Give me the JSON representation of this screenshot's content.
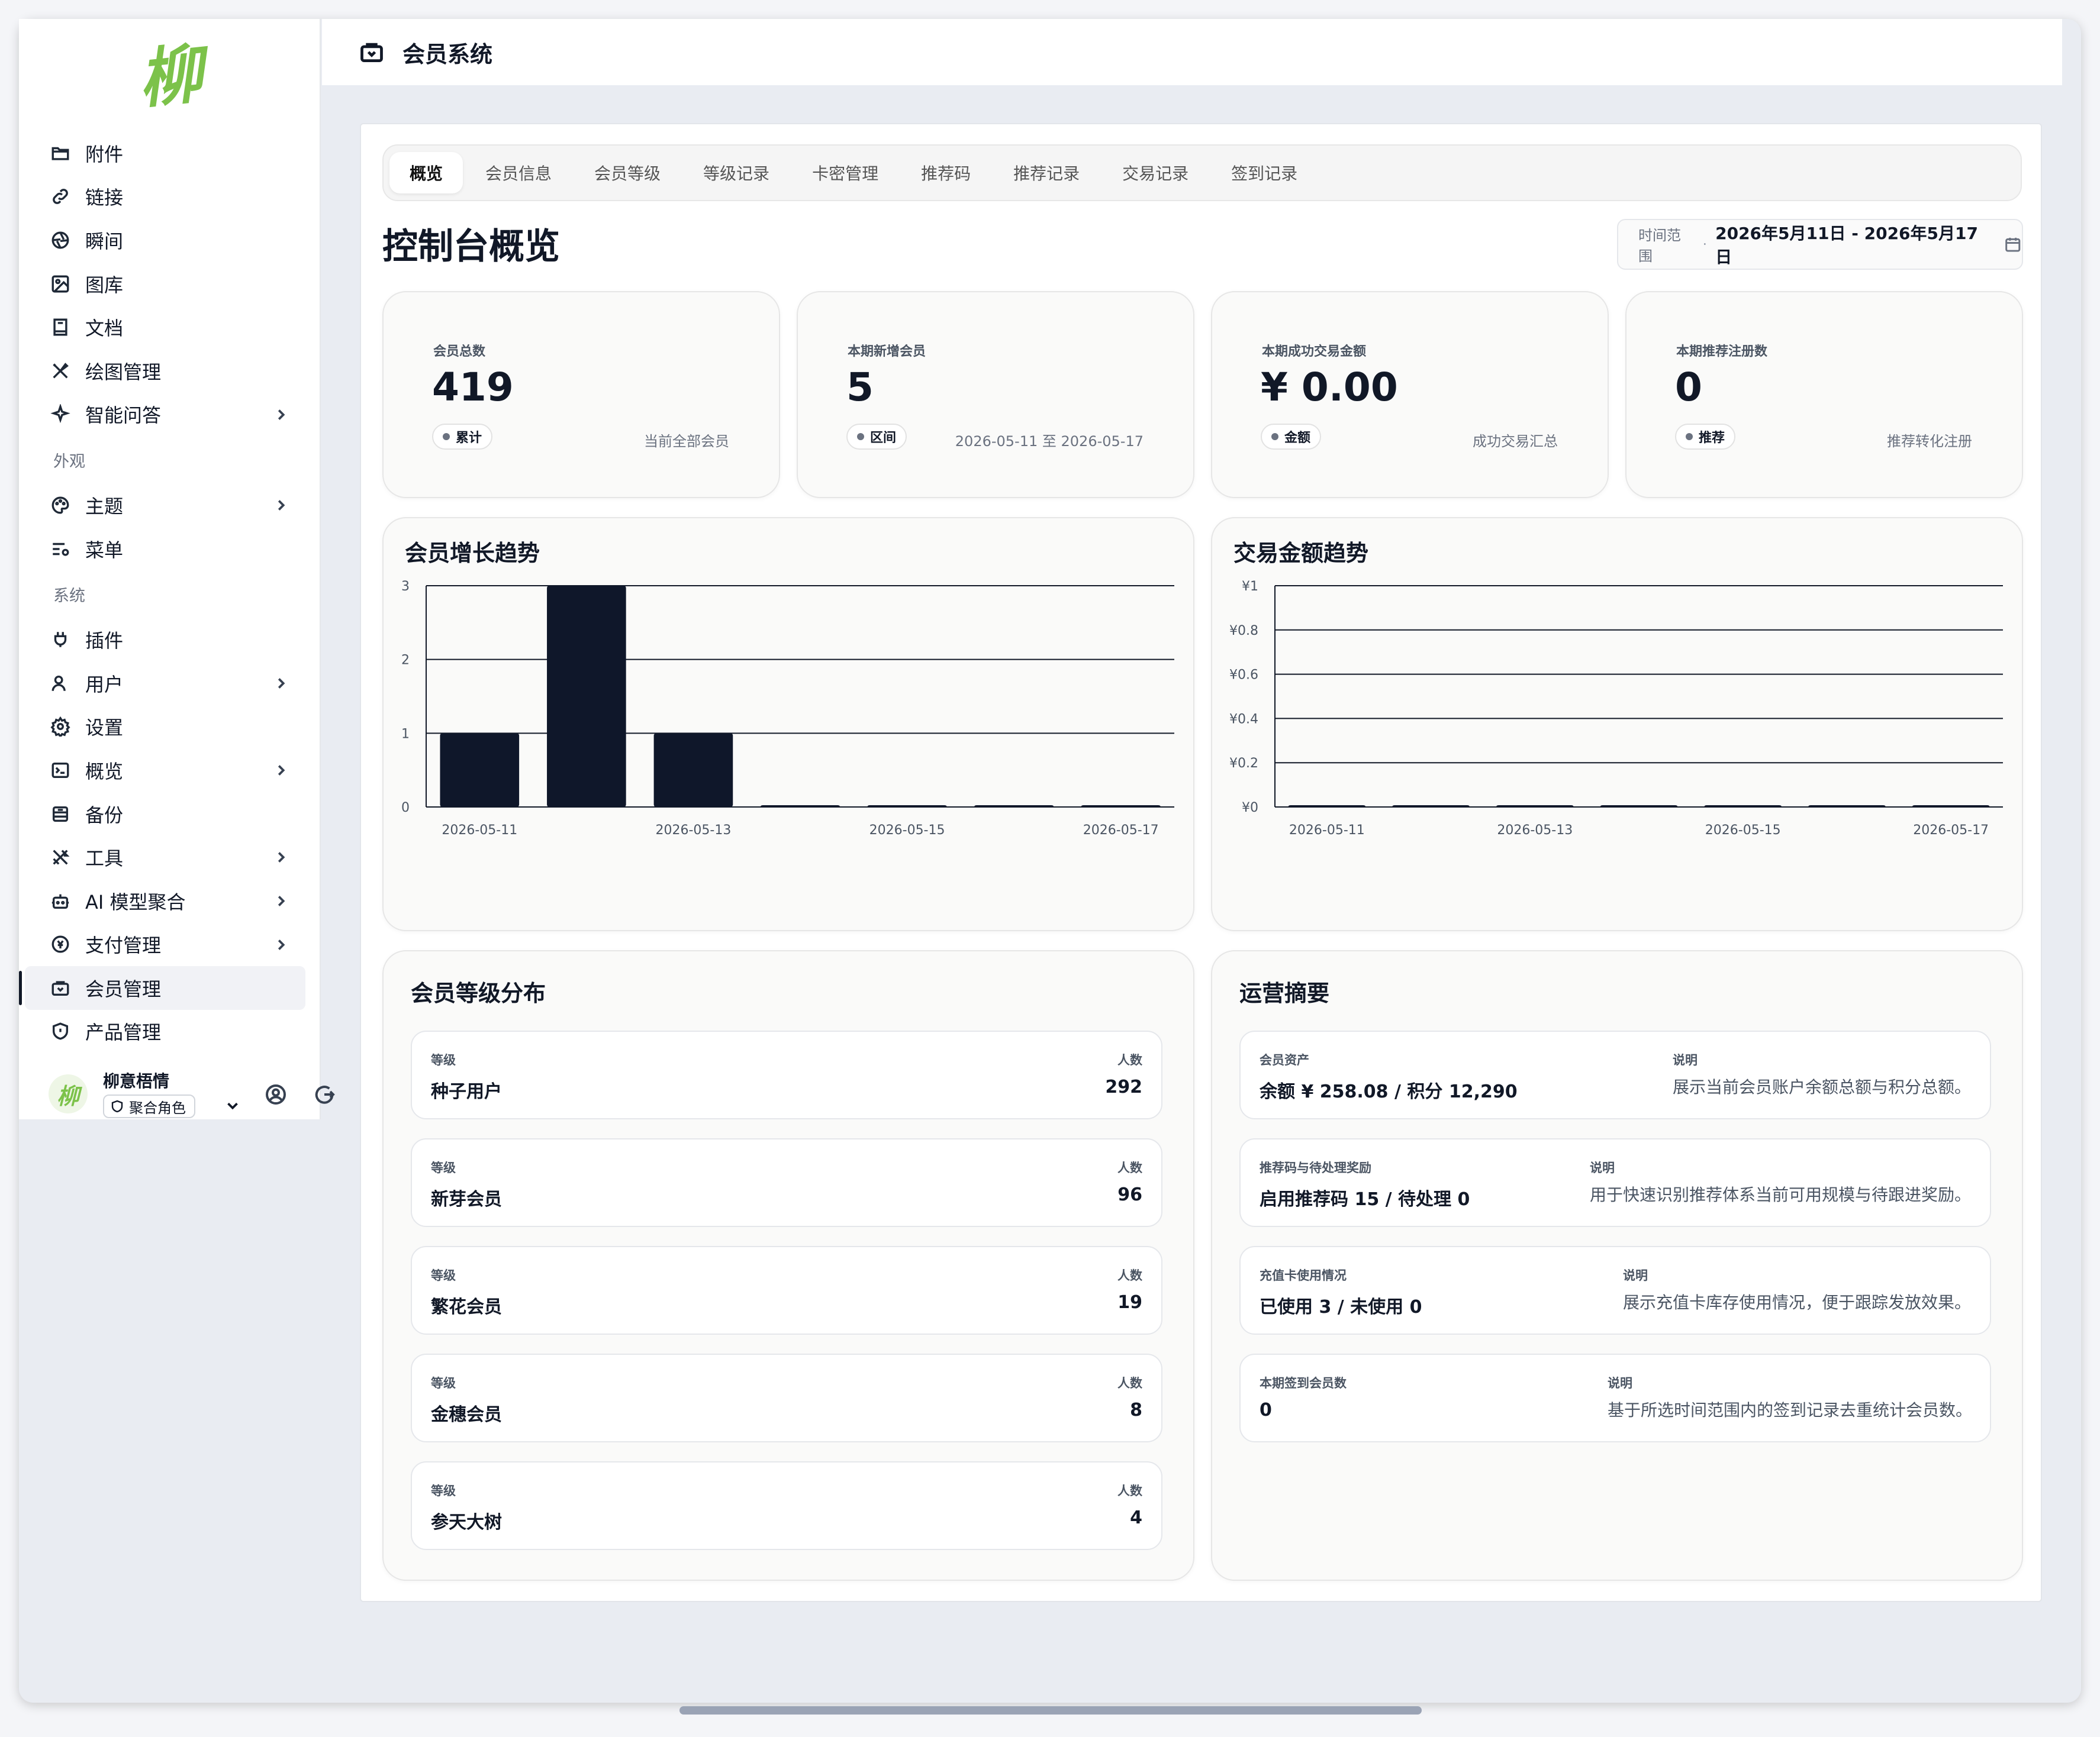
{
  "app": {
    "header_title": "会员系统",
    "logo_text": "柳"
  },
  "sidebar": {
    "items": [
      {
        "label": "附件",
        "icon": "folder-icon"
      },
      {
        "label": "链接",
        "icon": "link-icon"
      },
      {
        "label": "瞬间",
        "icon": "aperture-icon"
      },
      {
        "label": "图库",
        "icon": "image-icon"
      },
      {
        "label": "文档",
        "icon": "book-icon"
      },
      {
        "label": "绘图管理",
        "icon": "pen-tool-icon"
      },
      {
        "label": "智能问答",
        "icon": "sparkle-icon",
        "expandable": true
      }
    ],
    "section_appearance": "外观",
    "appearance_items": [
      {
        "label": "主题",
        "icon": "palette-icon",
        "expandable": true
      },
      {
        "label": "菜单",
        "icon": "menu-settings-icon"
      }
    ],
    "section_system": "系统",
    "system_items": [
      {
        "label": "插件",
        "icon": "plug-icon"
      },
      {
        "label": "用户",
        "icon": "user-icon",
        "expandable": true
      },
      {
        "label": "设置",
        "icon": "settings-icon"
      },
      {
        "label": "概览",
        "icon": "terminal-icon",
        "expandable": true
      },
      {
        "label": "备份",
        "icon": "archive-icon"
      },
      {
        "label": "工具",
        "icon": "tools-icon",
        "expandable": true
      },
      {
        "label": "AI 模型聚合",
        "icon": "bot-icon",
        "expandable": true
      },
      {
        "label": "支付管理",
        "icon": "currency-icon",
        "expandable": true
      },
      {
        "label": "会员管理",
        "icon": "member-icon",
        "active": true
      },
      {
        "label": "产品管理",
        "icon": "shield-icon"
      }
    ],
    "user": {
      "name": "柳意梧情",
      "role": "聚合角色",
      "avatar_text": "柳"
    }
  },
  "tabs": [
    "概览",
    "会员信息",
    "会员等级",
    "等级记录",
    "卡密管理",
    "推荐码",
    "推荐记录",
    "交易记录",
    "签到记录"
  ],
  "active_tab": "概览",
  "page_title": "控制台概览",
  "date_range": {
    "label": "时间范围",
    "separator": "·",
    "value": "2026年5月11日 - 2026年5月17日"
  },
  "stats": [
    {
      "label": "会员总数",
      "value": "419",
      "chip": "累计",
      "note": "当前全部会员"
    },
    {
      "label": "本期新增会员",
      "value": "5",
      "chip": "区间",
      "note": "2026-05-11 至 2026-05-17"
    },
    {
      "label": "本期成功交易金额",
      "value": "¥ 0.00",
      "chip": "金额",
      "note": "成功交易汇总"
    },
    {
      "label": "本期推荐注册数",
      "value": "0",
      "chip": "推荐",
      "note": "推荐转化注册"
    }
  ],
  "chart_data": [
    {
      "type": "bar",
      "title": "会员增长趋势",
      "categories": [
        "2026-05-11",
        "2026-05-12",
        "2026-05-13",
        "2026-05-14",
        "2026-05-15",
        "2026-05-16",
        "2026-05-17"
      ],
      "tick_labels": [
        "2026-05-11",
        "2026-05-13",
        "2026-05-15",
        "2026-05-17"
      ],
      "values": [
        1,
        3,
        1,
        0,
        0,
        0,
        0
      ],
      "y_ticks": [
        "0",
        "1",
        "2",
        "3"
      ],
      "ylim": [
        0,
        3
      ],
      "color": "#0f172a",
      "grid": true
    },
    {
      "type": "bar",
      "title": "交易金额趋势",
      "categories": [
        "2026-05-11",
        "2026-05-12",
        "2026-05-13",
        "2026-05-14",
        "2026-05-15",
        "2026-05-16",
        "2026-05-17"
      ],
      "tick_labels": [
        "2026-05-11",
        "2026-05-13",
        "2026-05-15",
        "2026-05-17"
      ],
      "values": [
        0,
        0,
        0,
        0,
        0,
        0,
        0
      ],
      "y_ticks": [
        "¥0",
        "¥0.2",
        "¥0.4",
        "¥0.6",
        "¥0.8",
        "¥1"
      ],
      "ylim": [
        0,
        1
      ],
      "color": "#0f172a",
      "grid": true
    }
  ],
  "levels": {
    "title": "会员等级分布",
    "key_label": "等级",
    "count_label": "人数",
    "rows": [
      {
        "name": "种子用户",
        "count": "292"
      },
      {
        "name": "新芽会员",
        "count": "96"
      },
      {
        "name": "繁花会员",
        "count": "19"
      },
      {
        "name": "金穗会员",
        "count": "8"
      },
      {
        "name": "参天大树",
        "count": "4"
      }
    ]
  },
  "ops": {
    "title": "运营摘要",
    "desc_label": "说明",
    "rows": [
      {
        "label": "会员资产",
        "value": "余额 ¥ 258.08 / 积分 12,290",
        "desc": "展示当前会员账户余额总额与积分总额。"
      },
      {
        "label": "推荐码与待处理奖励",
        "value": "启用推荐码 15 / 待处理 0",
        "desc": "用于快速识别推荐体系当前可用规模与待跟进奖励。"
      },
      {
        "label": "充值卡使用情况",
        "value": "已使用 3 / 未使用 0",
        "desc": "展示充值卡库存使用情况，便于跟踪发放效果。"
      },
      {
        "label": "本期签到会员数",
        "value": "0",
        "desc": "基于所选时间范围内的签到记录去重统计会员数。"
      }
    ]
  }
}
